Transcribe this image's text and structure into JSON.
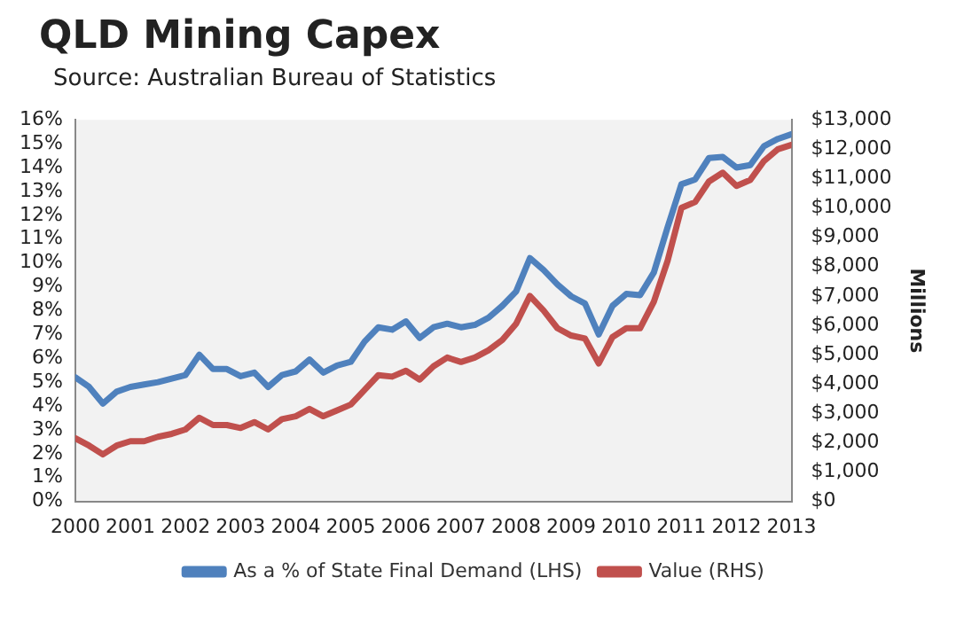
{
  "chart_data": {
    "type": "line",
    "title": "QLD Mining Capex",
    "subtitle": "Source: Australian Bureau of Statistics",
    "y2label": "Millions",
    "x": [
      2000,
      2000.25,
      2000.5,
      2000.75,
      2001,
      2001.25,
      2001.5,
      2001.75,
      2002,
      2002.25,
      2002.5,
      2002.75,
      2003,
      2003.25,
      2003.5,
      2003.75,
      2004,
      2004.25,
      2004.5,
      2004.75,
      2005,
      2005.25,
      2005.5,
      2005.75,
      2006,
      2006.25,
      2006.5,
      2006.75,
      2007,
      2007.25,
      2007.5,
      2007.75,
      2008,
      2008.25,
      2008.5,
      2008.75,
      2009,
      2009.25,
      2009.5,
      2009.75,
      2010,
      2010.25,
      2010.5,
      2010.75,
      2011,
      2011.25,
      2011.5,
      2011.75,
      2012,
      2012.25,
      2012.5,
      2012.75,
      2013
    ],
    "series": [
      {
        "name": "As a % of State Final Demand (LHS)",
        "color": "#4f81bd",
        "values": [
          5.2,
          4.8,
          4.1,
          4.6,
          4.8,
          4.9,
          5.0,
          5.15,
          5.3,
          6.15,
          5.55,
          5.55,
          5.25,
          5.4,
          4.8,
          5.3,
          5.45,
          5.95,
          5.4,
          5.7,
          5.85,
          6.7,
          7.3,
          7.2,
          7.55,
          6.85,
          7.3,
          7.45,
          7.3,
          7.4,
          7.7,
          8.2,
          8.8,
          10.2,
          9.7,
          9.1,
          8.6,
          8.3,
          7.0,
          8.2,
          8.7,
          8.65,
          9.6,
          11.5,
          13.3,
          13.5,
          14.4,
          14.45,
          14.0,
          14.1,
          14.9,
          15.2,
          15.4
        ]
      },
      {
        "name": "Value (RHS)",
        "color": "#c0504d",
        "axis": "y2",
        "values": [
          2150,
          1900,
          1600,
          1900,
          2050,
          2050,
          2200,
          2300,
          2450,
          2850,
          2600,
          2600,
          2500,
          2700,
          2450,
          2800,
          2900,
          3150,
          2900,
          3100,
          3300,
          3800,
          4300,
          4250,
          4450,
          4150,
          4600,
          4900,
          4750,
          4900,
          5150,
          5500,
          6050,
          7000,
          6500,
          5900,
          5650,
          5550,
          4700,
          5600,
          5900,
          5900,
          6800,
          8200,
          10000,
          10200,
          10900,
          11200,
          10750,
          10950,
          11600,
          12000,
          12150
        ]
      }
    ],
    "xlim": [
      2000,
      2013
    ],
    "xticks": [
      2000,
      2001,
      2002,
      2003,
      2004,
      2005,
      2006,
      2007,
      2008,
      2009,
      2010,
      2011,
      2012,
      2013
    ],
    "ylim": [
      0,
      16
    ],
    "yticks": [
      {
        "value": 0,
        "label": "0%"
      },
      {
        "value": 1,
        "label": "1%"
      },
      {
        "value": 2,
        "label": "2%"
      },
      {
        "value": 3,
        "label": "3%"
      },
      {
        "value": 4,
        "label": "4%"
      },
      {
        "value": 5,
        "label": "5%"
      },
      {
        "value": 6,
        "label": "6%"
      },
      {
        "value": 7,
        "label": "7%"
      },
      {
        "value": 8,
        "label": "8%"
      },
      {
        "value": 9,
        "label": "9%"
      },
      {
        "value": 10,
        "label": "10%"
      },
      {
        "value": 11,
        "label": "11%"
      },
      {
        "value": 12,
        "label": "12%"
      },
      {
        "value": 13,
        "label": "13%"
      },
      {
        "value": 14,
        "label": "14%"
      },
      {
        "value": 15,
        "label": "15%"
      },
      {
        "value": 16,
        "label": "16%"
      }
    ],
    "y2lim": [
      0,
      13000
    ],
    "y2ticks": [
      {
        "value": 0,
        "label": "$0"
      },
      {
        "value": 1000,
        "label": "$1,000"
      },
      {
        "value": 2000,
        "label": "$2,000"
      },
      {
        "value": 3000,
        "label": "$3,000"
      },
      {
        "value": 4000,
        "label": "$4,000"
      },
      {
        "value": 5000,
        "label": "$5,000"
      },
      {
        "value": 6000,
        "label": "$6,000"
      },
      {
        "value": 7000,
        "label": "$7,000"
      },
      {
        "value": 8000,
        "label": "$8,000"
      },
      {
        "value": 9000,
        "label": "$9,000"
      },
      {
        "value": 10000,
        "label": "$10,000"
      },
      {
        "value": 11000,
        "label": "$11,000"
      },
      {
        "value": 12000,
        "label": "$12,000"
      },
      {
        "value": 13000,
        "label": "$13,000"
      }
    ],
    "legend": "bottom",
    "marker": "none",
    "line_style": "solid"
  }
}
